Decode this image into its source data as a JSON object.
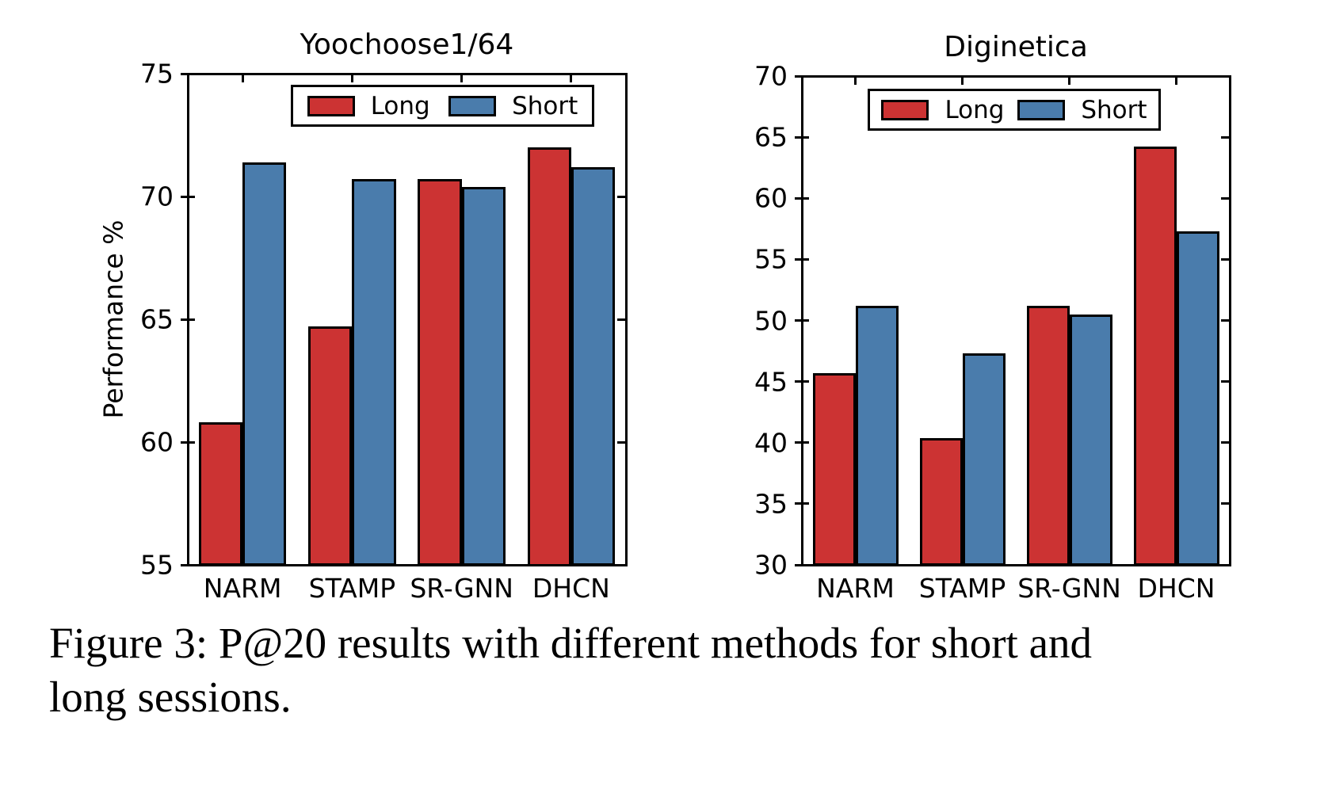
{
  "figure": {
    "caption_lines": [
      "Figure 3: P@20 results with different methods for short and",
      "long sessions."
    ]
  },
  "colors": {
    "long": "#cc3333",
    "short": "#4a7cac",
    "edge": "#000000"
  },
  "chart_data": [
    {
      "type": "bar",
      "title": "Yoochoose1/64",
      "ylabel": "Performance %",
      "categories": [
        "NARM",
        "STAMP",
        "SR-GNN",
        "DHCN"
      ],
      "series": [
        {
          "name": "Long",
          "color_key": "long",
          "values": [
            60.8,
            64.7,
            70.7,
            72.0
          ]
        },
        {
          "name": "Short",
          "color_key": "short",
          "values": [
            71.4,
            70.7,
            70.4,
            71.2
          ]
        }
      ],
      "ylim": [
        55,
        75
      ],
      "yticks": [
        75,
        70,
        65,
        60,
        55
      ],
      "grid": false,
      "legend_position": "upper center"
    },
    {
      "type": "bar",
      "title": "Diginetica",
      "ylabel": "",
      "categories": [
        "NARM",
        "STAMP",
        "SR-GNN",
        "DHCN"
      ],
      "series": [
        {
          "name": "Long",
          "color_key": "long",
          "values": [
            45.7,
            40.4,
            51.2,
            64.2
          ]
        },
        {
          "name": "Short",
          "color_key": "short",
          "values": [
            51.2,
            47.3,
            50.5,
            57.3
          ]
        }
      ],
      "ylim": [
        30,
        70
      ],
      "yticks": [
        70,
        65,
        60,
        55,
        50,
        45,
        40,
        35,
        30
      ],
      "grid": false,
      "legend_position": "upper center"
    }
  ]
}
